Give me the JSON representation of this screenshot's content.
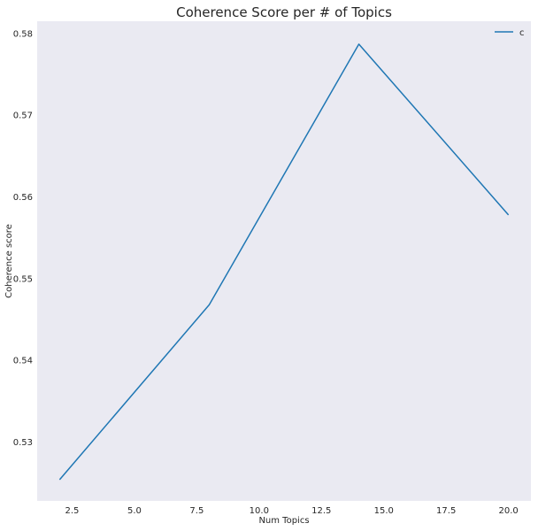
{
  "chart_data": {
    "type": "line",
    "title": "Coherence Score per # of Topics",
    "xlabel": "Num Topics",
    "ylabel": "Coherence score",
    "xlim": [
      1.1,
      20.9
    ],
    "ylim": [
      0.5228,
      0.5815
    ],
    "xticks": [
      2.5,
      5.0,
      7.5,
      10.0,
      12.5,
      15.0,
      17.5,
      20.0
    ],
    "xtick_labels": [
      "2.5",
      "5.0",
      "7.5",
      "10.0",
      "12.5",
      "15.0",
      "17.5",
      "20.0"
    ],
    "yticks": [
      0.53,
      0.54,
      0.55,
      0.56,
      0.57,
      0.58
    ],
    "ytick_labels": [
      "0.53",
      "0.54",
      "0.55",
      "0.56",
      "0.57",
      "0.58"
    ],
    "grid": false,
    "legend_position": "top-right",
    "background_color": "#eaeaf2",
    "series": [
      {
        "name": "c",
        "color": "#1f77b4",
        "x": [
          2,
          8,
          14,
          20
        ],
        "y": [
          0.5254,
          0.5468,
          0.5787,
          0.5578
        ]
      }
    ]
  }
}
